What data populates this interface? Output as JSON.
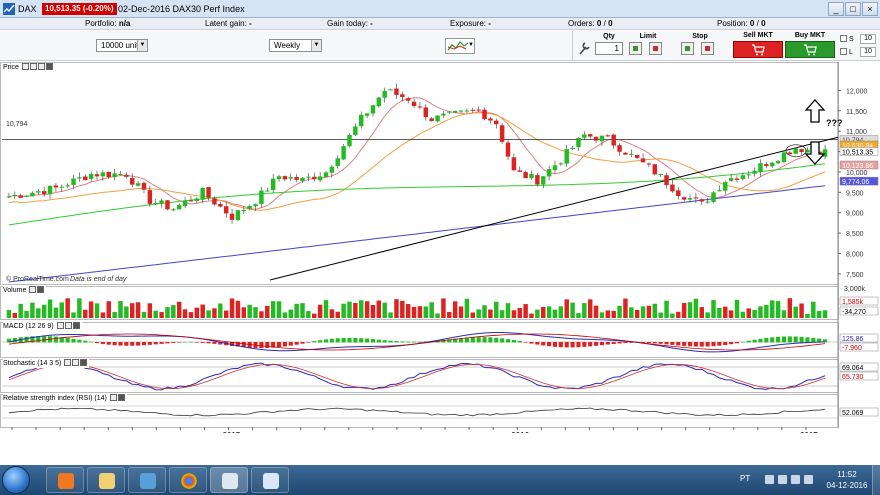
{
  "window": {
    "symbol": "DAX",
    "price_badge": "10,513.35 (-0.20%)",
    "info": "02-Dec-2016 DAX30 Perf Index",
    "buttons": [
      "_",
      "□",
      "×"
    ]
  },
  "infobar": {
    "portfolio_label": "Portfolio:",
    "portfolio_value": "n/a",
    "latent_gain_label": "Latent gain:",
    "latent_gain_value": "-",
    "gain_today_label": "Gain today:",
    "gain_today_value": "-",
    "exposure_label": "Exposure:",
    "exposure_value": "-",
    "orders_label": "Orders:",
    "orders_value": "0",
    "orders_sep": "/",
    "orders_value2": "0",
    "position_label": "Position:",
    "position_value": "0",
    "position_sep": "/",
    "position_value2": "0"
  },
  "toolbar": {
    "units_select": "10000 units",
    "period_select": "Weekly"
  },
  "order_panel": {
    "qty_label": "Qty",
    "qty_value": "1",
    "limit_label": "Limit",
    "stop_label": "Stop",
    "sell_label": "Sell MKT",
    "buy_label": "Buy MKT",
    "s_label": "S",
    "s_value": "10",
    "l_label": "L",
    "l_value": "10"
  },
  "price_panel": {
    "title": "Price",
    "hline_label": "10,794",
    "credit": "© ProRealTime.com",
    "credit_note": "Data is end of day",
    "annotation": "???",
    "y_ticks": [
      "12,000",
      "11,500",
      "11,000",
      "10,500",
      "10,000",
      "9,500",
      "9,000",
      "8,500",
      "8,000",
      "7,500"
    ],
    "badges": [
      {
        "text": "10,794",
        "color": "#dddddd",
        "fg": "#555555"
      },
      {
        "text": "10,630.84",
        "color": "#f5a623",
        "fg": "#ffffff"
      },
      {
        "text": "10,513.35",
        "color": "#ffffff",
        "fg": "#000000"
      },
      {
        "text": "10,123.86",
        "color": "#e8a0a0",
        "fg": "#ffffff"
      },
      {
        "text": "9,774.06",
        "color": "#5555dd",
        "fg": "#ffffff"
      }
    ]
  },
  "volume_panel": {
    "title": "Volume",
    "y_tick": "3,000k",
    "badges": [
      {
        "text": "1,585k",
        "color": "#ffffff",
        "fg": "#cc0000"
      },
      {
        "text": "-34,270",
        "color": "#ffffff",
        "fg": "#000000"
      }
    ]
  },
  "macd_panel": {
    "title": "MACD (12 26 9)",
    "badges": [
      {
        "text": "125.86",
        "color": "#ffffff",
        "fg": "#2b2bb3"
      },
      {
        "text": "-7.960",
        "color": "#ffffff",
        "fg": "#cc0000"
      }
    ]
  },
  "stochastic_panel": {
    "title": "Stochastic (14 3 5)",
    "badges": [
      {
        "text": "69.064",
        "color": "#ffffff",
        "fg": "#000000"
      },
      {
        "text": "65.730",
        "color": "#ffffff",
        "fg": "#cc0000"
      }
    ]
  },
  "rsi_panel": {
    "title": "Relative strength index (RSI) (14)",
    "badges": [
      {
        "text": "52.069",
        "color": "#ffffff",
        "fg": "#000000"
      }
    ]
  },
  "x_axis": {
    "labels": [
      "Apr",
      "May",
      "Jun",
      "Jul",
      "Aug",
      "Sep",
      "Oct",
      "Nov",
      "Dec",
      "2015",
      "Feb",
      "Mar",
      "Apr",
      "May",
      "Jun",
      "Jul",
      "Aug",
      "Sep",
      "Oct",
      "Nov",
      "Dec",
      "2016",
      "Feb",
      "Mar",
      "Apr",
      "May",
      "Jun",
      "Jul",
      "Aug",
      "Sep",
      "Oct",
      "Nov",
      "Dec",
      "2017"
    ],
    "bold": [
      "2015",
      "2016",
      "2017"
    ]
  },
  "chart_data": {
    "type": "candlestick",
    "title": "",
    "x_range": [
      "Apr 2014",
      "Dec 2016"
    ],
    "ylim": [
      7300,
      12500
    ],
    "colors": {
      "up": "#22bb22",
      "down": "#dd2222",
      "ma_fast": "#e08080",
      "ma_mid": "#f0a040",
      "ma_slow": "#33cc33",
      "ma_long": "#4444cc",
      "trendline": "#000000",
      "hline": "#444444"
    },
    "trendline": [
      {
        "x": "Oct 2015",
        "y": 7350
      },
      {
        "x": "Dec 2016",
        "y": 10850
      }
    ],
    "hline": 10794,
    "last_close": 10513.35
  },
  "taskbar": {
    "lang": "PT",
    "time": "11:52",
    "date": "04-12-2016"
  }
}
